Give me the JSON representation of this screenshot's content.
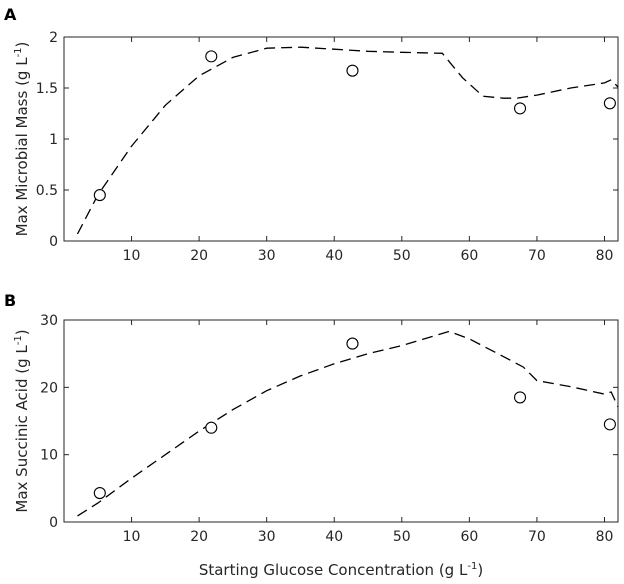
{
  "chart_data": [
    {
      "type": "scatter",
      "panel_label": "A",
      "xlabel": "",
      "ylabel": "Max Microbial Mass (g L",
      "ylabel_sup": "-1",
      "ylabel_close": ")",
      "xlim": [
        0,
        82
      ],
      "ylim": [
        0,
        2
      ],
      "xticks": [
        10,
        20,
        30,
        40,
        50,
        60,
        70,
        80
      ],
      "yticks": [
        0,
        0.5,
        1,
        1.5,
        2
      ],
      "grid": false,
      "series": [
        {
          "style": "markers",
          "marker": "open-circle",
          "x": [
            5.3,
            21.8,
            42.7,
            67.5,
            80.8
          ],
          "y": [
            0.45,
            1.81,
            1.67,
            1.3,
            1.35
          ]
        },
        {
          "style": "dashed-line",
          "x": [
            2,
            5,
            10,
            15,
            20,
            25,
            30,
            35,
            40,
            45,
            50,
            56,
            59,
            62,
            65,
            67,
            70,
            75,
            80,
            81,
            82
          ],
          "y": [
            0.07,
            0.45,
            0.93,
            1.33,
            1.62,
            1.8,
            1.89,
            1.9,
            1.88,
            1.86,
            1.85,
            1.84,
            1.6,
            1.42,
            1.4,
            1.4,
            1.43,
            1.5,
            1.55,
            1.58,
            1.51
          ]
        }
      ]
    },
    {
      "type": "scatter",
      "panel_label": "B",
      "xlabel": "Starting Glucose Concentration (g L",
      "xlabel_sup": "-1",
      "xlabel_close": ")",
      "ylabel": "Max Succinic Acid (g L",
      "ylabel_sup": "-1",
      "ylabel_close": ")",
      "xlim": [
        0,
        82
      ],
      "ylim": [
        0,
        30
      ],
      "xticks": [
        10,
        20,
        30,
        40,
        50,
        60,
        70,
        80
      ],
      "yticks": [
        0,
        10,
        20,
        30
      ],
      "grid": false,
      "series": [
        {
          "style": "markers",
          "marker": "open-circle",
          "x": [
            5.3,
            21.8,
            42.7,
            67.5,
            80.8
          ],
          "y": [
            4.3,
            14.0,
            26.5,
            18.5,
            14.5
          ]
        },
        {
          "style": "dashed-line",
          "x": [
            2,
            5,
            10,
            15,
            20,
            25,
            30,
            35,
            40,
            45,
            50,
            55,
            57,
            60,
            65,
            68,
            70,
            75,
            80,
            81,
            82
          ],
          "y": [
            0.9,
            2.8,
            6.5,
            10.0,
            13.5,
            16.7,
            19.5,
            21.7,
            23.5,
            25.0,
            26.2,
            27.7,
            28.3,
            27.2,
            24.6,
            23.0,
            21.0,
            20.1,
            19.0,
            19.3,
            17.1
          ]
        }
      ]
    }
  ]
}
